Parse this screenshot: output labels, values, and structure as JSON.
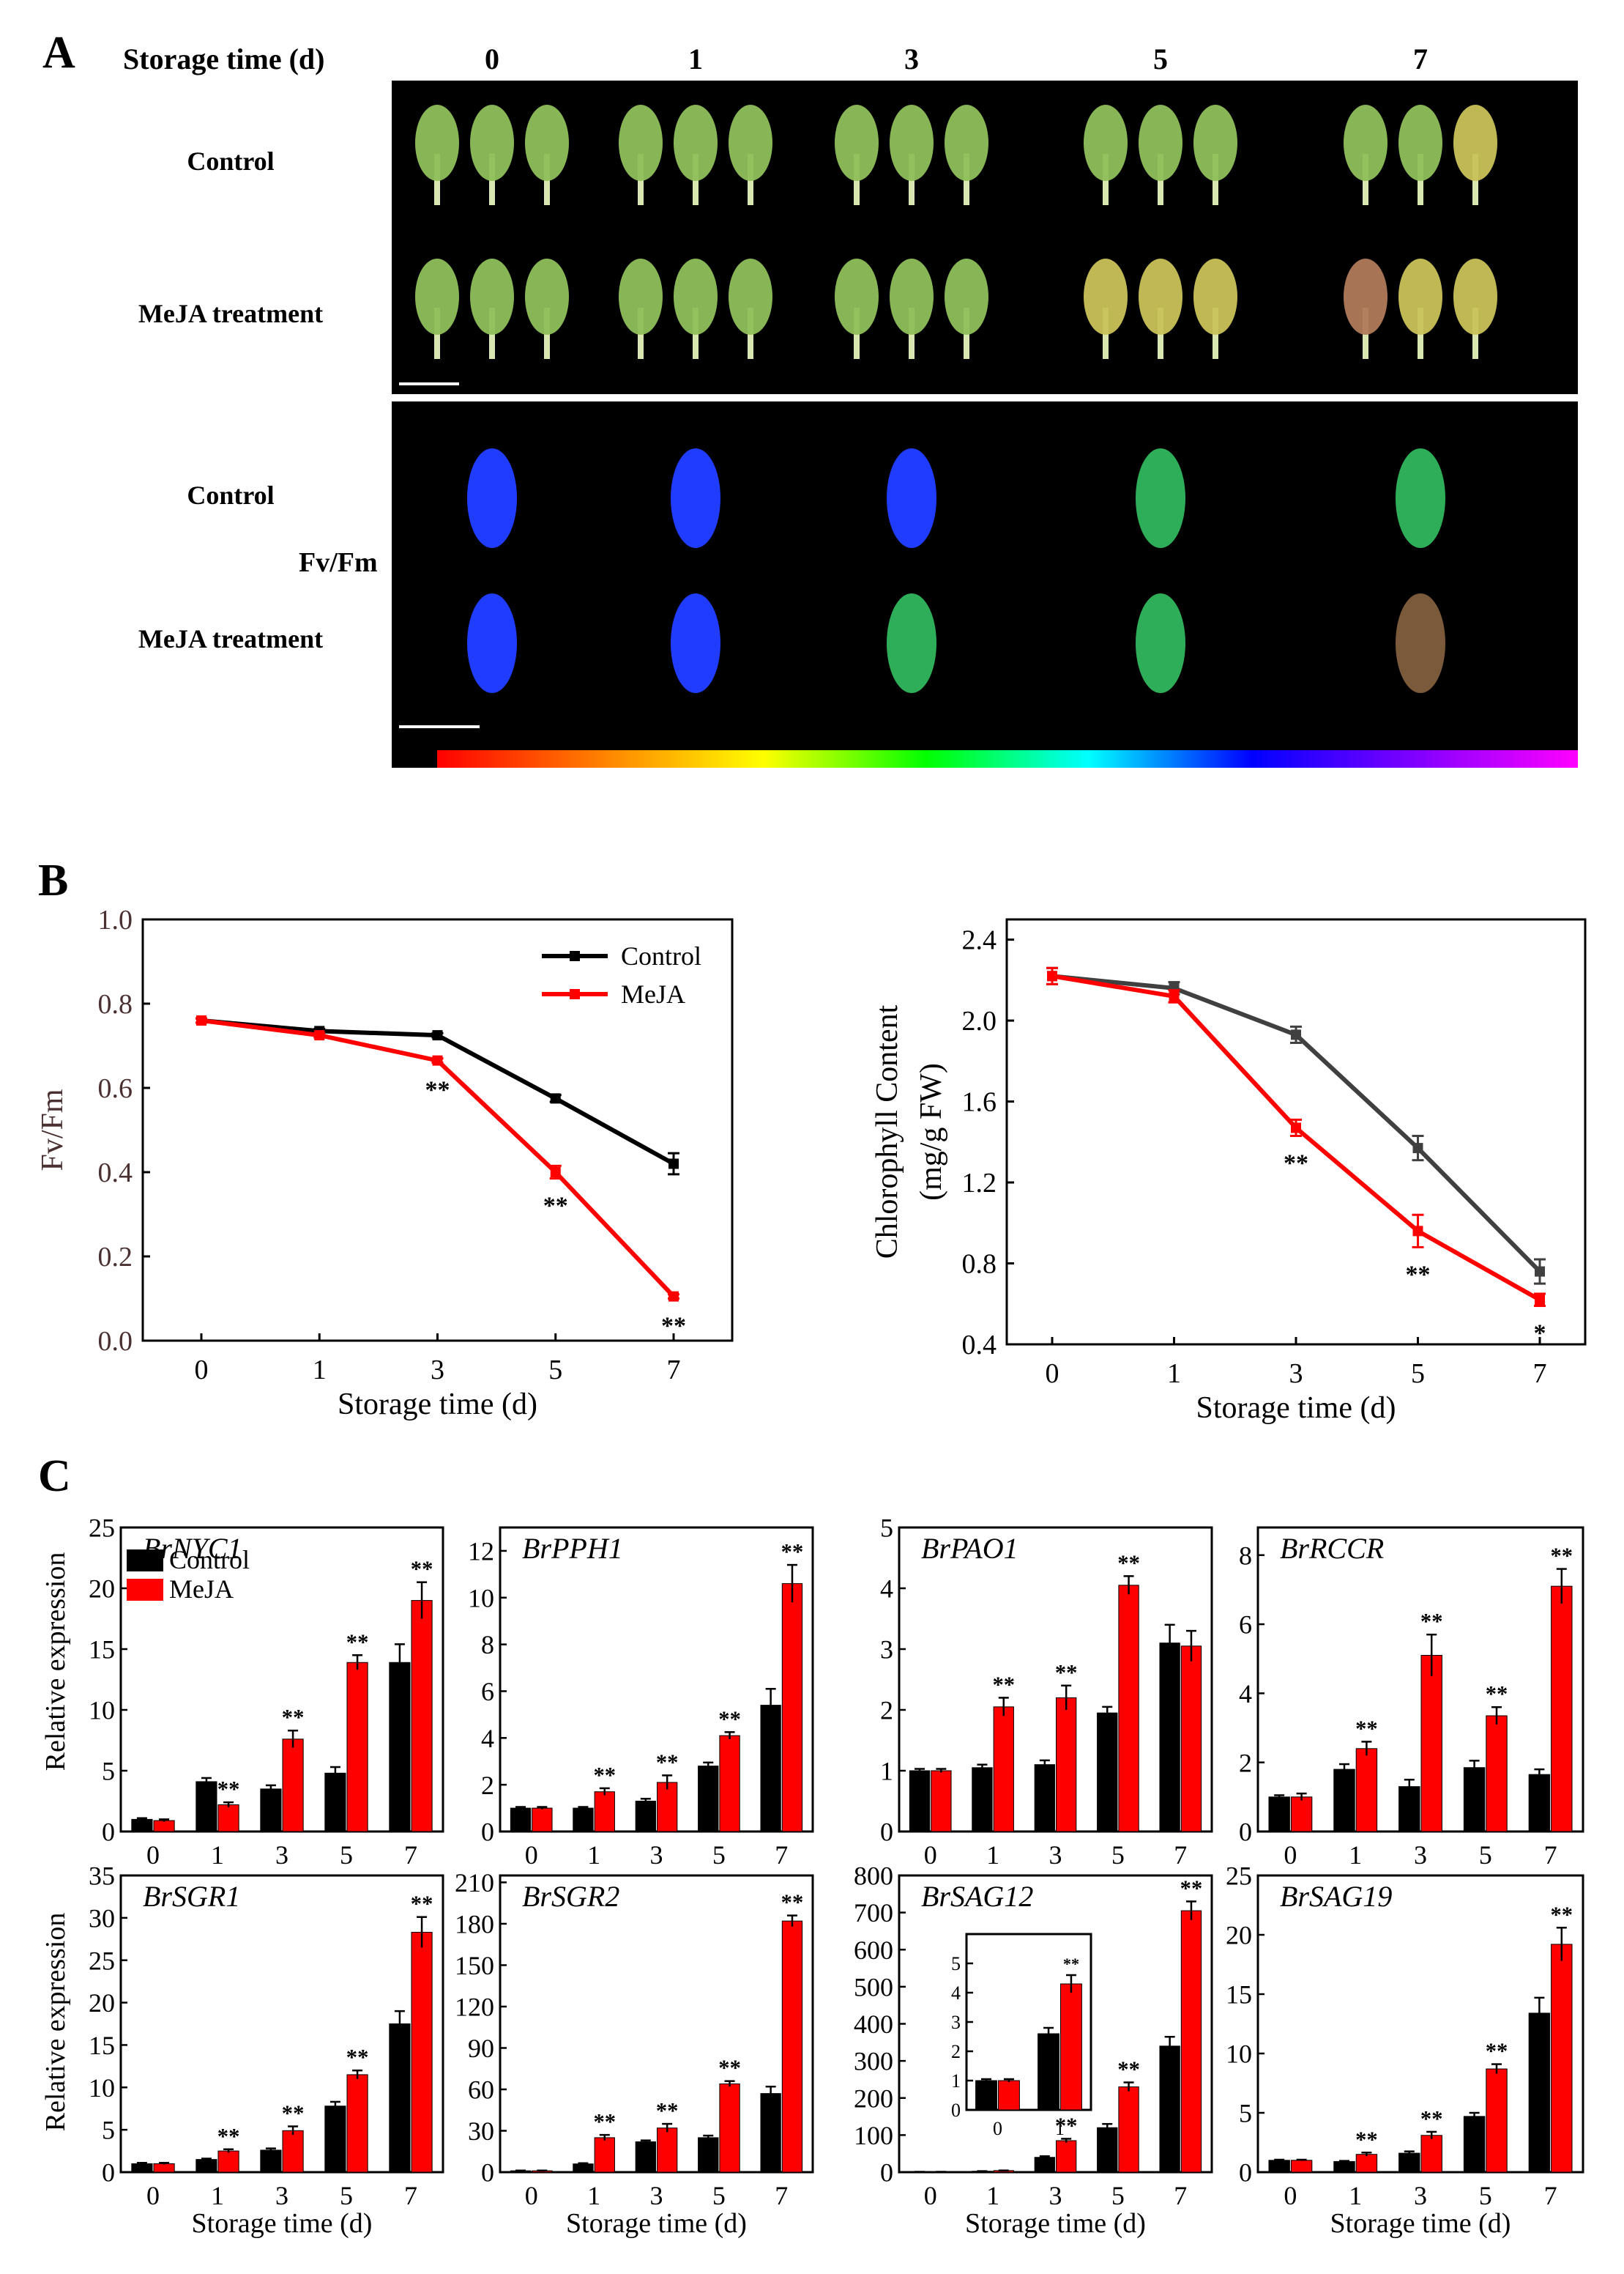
{
  "panel_a": {
    "letter": "A",
    "storage_label": "Storage time (d)",
    "days": [
      "0",
      "1",
      "3",
      "5",
      "7"
    ],
    "rows_top": [
      "Control",
      "MeJA treatment"
    ],
    "rows_bottom": [
      "Control",
      "MeJA treatment"
    ],
    "fvfm_label": "Fv/Fm",
    "colorbar": [
      "#000000",
      "#ff0000",
      "#ff8000",
      "#ffff00",
      "#00ff00",
      "#00ffff",
      "#0000ff",
      "#8000ff",
      "#ff00ff"
    ],
    "leaf_colors": {
      "photo_green": "#8fbf5a",
      "photo_yellow": "#c9c25a",
      "photo_red": "#b07a5a",
      "fluor_blue": "#1f3cff",
      "fluor_green": "#2fae5a",
      "fluor_brown": "#7a5a3a"
    }
  },
  "panel_b": {
    "letter": "B"
  },
  "panel_c": {
    "letter": "C",
    "ylabel": "Relative expression"
  },
  "colors": {
    "control": "#000000",
    "meja": "#ff0000",
    "control_gray": "#404040",
    "axis": "#000000"
  },
  "chart_data": [
    {
      "id": "b1",
      "type": "line",
      "x": [
        0,
        1,
        3,
        5,
        7
      ],
      "xlabel": "Storage time (d)",
      "ylabel": "Fv/Fm",
      "ylim": [
        0,
        1.0
      ],
      "yticks": [
        "0.0",
        "0.2",
        "0.4",
        "0.6",
        "0.8",
        "1.0"
      ],
      "ytick_vals": [
        0,
        0.2,
        0.4,
        0.6,
        0.8,
        1.0
      ],
      "legend": "top-right",
      "series": [
        {
          "name": "Control",
          "values": [
            0.76,
            0.735,
            0.725,
            0.575,
            0.42
          ],
          "err": [
            0.005,
            0.005,
            0.005,
            0.008,
            0.025
          ]
        },
        {
          "name": "MeJA",
          "values": [
            0.76,
            0.725,
            0.665,
            0.4,
            0.105
          ],
          "err": [
            0.005,
            0.005,
            0.005,
            0.015,
            0.005
          ]
        }
      ],
      "annotations": [
        {
          "x": 3,
          "text": "**"
        },
        {
          "x": 5,
          "text": "**"
        },
        {
          "x": 7,
          "text": "**"
        }
      ]
    },
    {
      "id": "b2",
      "type": "line",
      "x": [
        0,
        1,
        3,
        5,
        7
      ],
      "xlabel": "Storage time (d)",
      "ylabel": "Chlorophyll Content\n(mg/g FW)",
      "ylim": [
        0.4,
        2.5
      ],
      "yticks": [
        "0.4",
        "0.8",
        "1.2",
        "1.6",
        "2.0",
        "2.4"
      ],
      "ytick_vals": [
        0.4,
        0.8,
        1.2,
        1.6,
        2.0,
        2.4
      ],
      "series": [
        {
          "name": "Control",
          "values": [
            2.22,
            2.16,
            1.93,
            1.37,
            0.76
          ],
          "err": [
            0.04,
            0.03,
            0.04,
            0.06,
            0.06
          ]
        },
        {
          "name": "MeJA",
          "values": [
            2.22,
            2.12,
            1.47,
            0.96,
            0.62
          ],
          "err": [
            0.04,
            0.03,
            0.04,
            0.08,
            0.03
          ]
        }
      ],
      "annotations": [
        {
          "x": 3,
          "text": "**"
        },
        {
          "x": 5,
          "text": "**"
        },
        {
          "x": 7,
          "text": "*"
        }
      ]
    },
    {
      "id": "c1",
      "type": "bar",
      "title": "BrNYC1",
      "categories": [
        "0",
        "1",
        "3",
        "5",
        "7"
      ],
      "ylim": [
        0,
        25
      ],
      "yticks": [
        0,
        5,
        10,
        15,
        20,
        25
      ],
      "legend": "top-left",
      "series": [
        {
          "name": "Control",
          "values": [
            1.0,
            4.1,
            3.5,
            4.8,
            13.9
          ],
          "err": [
            0.1,
            0.3,
            0.3,
            0.5,
            1.5
          ]
        },
        {
          "name": "MeJA",
          "values": [
            0.9,
            2.2,
            7.6,
            13.9,
            19.0
          ],
          "err": [
            0.1,
            0.2,
            0.7,
            0.6,
            1.5
          ]
        }
      ],
      "sig": [
        "",
        "**",
        "**",
        "**",
        "**"
      ]
    },
    {
      "id": "c2",
      "type": "bar",
      "title": "BrPPH1",
      "categories": [
        "0",
        "1",
        "3",
        "5",
        "7"
      ],
      "ylim": [
        0,
        13
      ],
      "yticks": [
        0,
        2,
        4,
        6,
        8,
        10,
        12
      ],
      "series": [
        {
          "name": "Control",
          "values": [
            1.0,
            1.0,
            1.3,
            2.8,
            5.4
          ],
          "err": [
            0.05,
            0.05,
            0.1,
            0.15,
            0.7
          ]
        },
        {
          "name": "MeJA",
          "values": [
            1.0,
            1.7,
            2.1,
            4.1,
            10.6
          ],
          "err": [
            0.05,
            0.15,
            0.3,
            0.15,
            0.8
          ]
        }
      ],
      "sig": [
        "",
        "**",
        "**",
        "**",
        "**"
      ]
    },
    {
      "id": "c3",
      "type": "bar",
      "title": "BrPAO1",
      "categories": [
        "0",
        "1",
        "3",
        "5",
        "7"
      ],
      "ylim": [
        0,
        5
      ],
      "yticks": [
        0,
        1,
        2,
        3,
        4,
        5
      ],
      "series": [
        {
          "name": "Control",
          "values": [
            1.0,
            1.05,
            1.1,
            1.95,
            3.1
          ],
          "err": [
            0.03,
            0.05,
            0.07,
            0.1,
            0.3
          ]
        },
        {
          "name": "MeJA",
          "values": [
            1.0,
            2.05,
            2.2,
            4.05,
            3.05
          ],
          "err": [
            0.03,
            0.15,
            0.2,
            0.15,
            0.25
          ]
        }
      ],
      "sig": [
        "",
        "**",
        "**",
        "**",
        ""
      ]
    },
    {
      "id": "c4",
      "type": "bar",
      "title": "BrRCCR",
      "categories": [
        "0",
        "1",
        "3",
        "5",
        "7"
      ],
      "ylim": [
        0,
        8.8
      ],
      "yticks": [
        0,
        2,
        4,
        6,
        8
      ],
      "series": [
        {
          "name": "Control",
          "values": [
            1.0,
            1.8,
            1.3,
            1.85,
            1.65
          ],
          "err": [
            0.05,
            0.15,
            0.2,
            0.2,
            0.15
          ]
        },
        {
          "name": "MeJA",
          "values": [
            1.0,
            2.4,
            5.1,
            3.35,
            7.1
          ],
          "err": [
            0.1,
            0.2,
            0.6,
            0.25,
            0.5
          ]
        }
      ],
      "sig": [
        "",
        "**",
        "**",
        "**",
        "**"
      ]
    },
    {
      "id": "c5",
      "type": "bar",
      "title": "BrSGR1",
      "categories": [
        "0",
        "1",
        "3",
        "5",
        "7"
      ],
      "xlabel": "Storage time (d)",
      "ylim": [
        0,
        35
      ],
      "yticks": [
        0,
        5,
        10,
        15,
        20,
        25,
        30,
        35
      ],
      "series": [
        {
          "name": "Control",
          "values": [
            1.0,
            1.5,
            2.6,
            7.8,
            17.5
          ],
          "err": [
            0.1,
            0.1,
            0.2,
            0.5,
            1.5
          ]
        },
        {
          "name": "MeJA",
          "values": [
            1.0,
            2.5,
            4.9,
            11.5,
            28.3
          ],
          "err": [
            0.1,
            0.2,
            0.5,
            0.5,
            1.8
          ]
        }
      ],
      "sig": [
        "",
        "**",
        "**",
        "**",
        "**"
      ]
    },
    {
      "id": "c6",
      "type": "bar",
      "title": "BrSGR2",
      "categories": [
        "0",
        "1",
        "3",
        "5",
        "7"
      ],
      "xlabel": "Storage time (d)",
      "ylim": [
        0,
        215
      ],
      "yticks": [
        0,
        30,
        60,
        90,
        120,
        150,
        180,
        210
      ],
      "series": [
        {
          "name": "Control",
          "values": [
            1.0,
            6,
            22,
            25,
            57
          ],
          "err": [
            0.2,
            0.5,
            1,
            1.5,
            5
          ]
        },
        {
          "name": "MeJA",
          "values": [
            1.0,
            25,
            32,
            64,
            182
          ],
          "err": [
            0.2,
            2,
            3,
            2,
            4
          ]
        }
      ],
      "sig": [
        "",
        "**",
        "**",
        "**",
        "**"
      ]
    },
    {
      "id": "c7",
      "type": "bar",
      "title": "BrSAG12",
      "categories": [
        "0",
        "1",
        "3",
        "5",
        "7"
      ],
      "xlabel": "Storage time (d)",
      "ylim": [
        0,
        800
      ],
      "yticks": [
        0,
        100,
        200,
        300,
        400,
        500,
        600,
        700,
        800
      ],
      "series": [
        {
          "name": "Control",
          "values": [
            1.0,
            2.6,
            40,
            120,
            340
          ],
          "err": [
            0.05,
            0.2,
            3,
            10,
            25
          ]
        },
        {
          "name": "MeJA",
          "values": [
            1.0,
            4.3,
            85,
            230,
            705
          ],
          "err": [
            0.05,
            0.3,
            5,
            12,
            25
          ]
        }
      ],
      "sig": [
        "",
        "",
        "**",
        "**",
        "**"
      ],
      "inset": {
        "categories": [
          "0",
          "1"
        ],
        "ylim": [
          0,
          6
        ],
        "yticks": [
          0,
          1,
          2,
          3,
          4,
          5
        ],
        "series": [
          {
            "name": "Control",
            "values": [
              1.0,
              2.6
            ],
            "err": [
              0.05,
              0.2
            ]
          },
          {
            "name": "MeJA",
            "values": [
              1.0,
              4.3
            ],
            "err": [
              0.05,
              0.3
            ]
          }
        ],
        "sig": [
          "",
          "**"
        ]
      }
    },
    {
      "id": "c8",
      "type": "bar",
      "title": "BrSAG19",
      "categories": [
        "0",
        "1",
        "3",
        "5",
        "7"
      ],
      "xlabel": "Storage time (d)",
      "ylim": [
        0,
        25
      ],
      "yticks": [
        0,
        5,
        10,
        15,
        20,
        25
      ],
      "series": [
        {
          "name": "Control",
          "values": [
            1.0,
            0.9,
            1.6,
            4.7,
            13.4
          ],
          "err": [
            0.05,
            0.05,
            0.15,
            0.3,
            1.3
          ]
        },
        {
          "name": "MeJA",
          "values": [
            1.0,
            1.5,
            3.1,
            8.7,
            19.2
          ],
          "err": [
            0.05,
            0.15,
            0.3,
            0.4,
            1.4
          ]
        }
      ],
      "sig": [
        "",
        "**",
        "**",
        "**",
        "**"
      ]
    }
  ]
}
